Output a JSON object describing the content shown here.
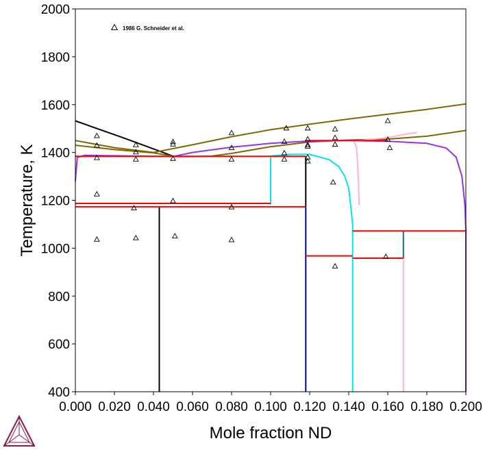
{
  "chart_data": {
    "type": "scatter",
    "title": "",
    "xlabel": "Mole fraction ND",
    "ylabel": "Temperature, K",
    "xlim": [
      0.0,
      0.2
    ],
    "ylim": [
      400,
      2000
    ],
    "grid": false,
    "legend_position": "top-left",
    "x_ticks": [
      "0.000",
      "0.020",
      "0.040",
      "0.060",
      "0.080",
      "0.100",
      "0.120",
      "0.140",
      "0.160",
      "0.180",
      "0.200"
    ],
    "x_tick_values": [
      0.0,
      0.02,
      0.04,
      0.06,
      0.08,
      0.1,
      0.12,
      0.14,
      0.16,
      0.18,
      0.2
    ],
    "y_ticks": [
      "400",
      "600",
      "800",
      "1000",
      "1200",
      "1400",
      "1600",
      "1800",
      "2000"
    ],
    "y_tick_values": [
      400,
      600,
      800,
      1000,
      1200,
      1400,
      1600,
      1800,
      2000
    ],
    "series": [
      {
        "name": "1986 G. Schneider et al.",
        "marker": "triangle",
        "color": "#000000",
        "points": [
          [
            0.011,
            1470
          ],
          [
            0.011,
            1430
          ],
          [
            0.011,
            1378
          ],
          [
            0.011,
            1226
          ],
          [
            0.011,
            1037
          ],
          [
            0.031,
            1432
          ],
          [
            0.031,
            1402
          ],
          [
            0.031,
            1372
          ],
          [
            0.03,
            1168
          ],
          [
            0.031,
            1043
          ],
          [
            0.05,
            1445
          ],
          [
            0.05,
            1435
          ],
          [
            0.05,
            1375
          ],
          [
            0.05,
            1198
          ],
          [
            0.051,
            1051
          ],
          [
            0.08,
            1482
          ],
          [
            0.08,
            1420
          ],
          [
            0.08,
            1372
          ],
          [
            0.08,
            1172
          ],
          [
            0.08,
            1035
          ],
          [
            0.108,
            1502
          ],
          [
            0.107,
            1446
          ],
          [
            0.107,
            1398
          ],
          [
            0.107,
            1372
          ],
          [
            0.119,
            1502
          ],
          [
            0.119,
            1456
          ],
          [
            0.119,
            1432
          ],
          [
            0.119,
            1426
          ],
          [
            0.119,
            1381
          ],
          [
            0.119,
            1364
          ],
          [
            0.133,
            1498
          ],
          [
            0.133,
            1462
          ],
          [
            0.133,
            1434
          ],
          [
            0.132,
            1276
          ],
          [
            0.133,
            925
          ],
          [
            0.16,
            1533
          ],
          [
            0.16,
            1455
          ],
          [
            0.161,
            1420
          ],
          [
            0.159,
            965
          ]
        ]
      }
    ],
    "curves": [
      {
        "color": "#000000",
        "points": [
          [
            0.0,
            1532
          ],
          [
            0.025,
            1460
          ],
          [
            0.05,
            1385
          ]
        ]
      },
      {
        "color": "#000000",
        "points": [
          [
            0.043,
            1175
          ],
          [
            0.043,
            400
          ]
        ]
      },
      {
        "color": "#000000",
        "points": [
          [
            0.118,
            1384
          ],
          [
            0.118,
            1175
          ]
        ]
      },
      {
        "color": "#806600",
        "points": [
          [
            0.0,
            1450
          ],
          [
            0.02,
            1420
          ],
          [
            0.04,
            1400
          ],
          [
            0.06,
            1432
          ],
          [
            0.08,
            1466
          ],
          [
            0.1,
            1495
          ],
          [
            0.12,
            1518
          ],
          [
            0.14,
            1540
          ],
          [
            0.16,
            1560
          ],
          [
            0.18,
            1580
          ],
          [
            0.2,
            1603
          ]
        ]
      },
      {
        "color": "#806600",
        "points": [
          [
            0.0,
            1430
          ],
          [
            0.02,
            1412
          ],
          [
            0.04,
            1398
          ],
          [
            0.05,
            1385
          ]
        ]
      },
      {
        "color": "#806600",
        "points": [
          [
            0.05,
            1383
          ],
          [
            0.06,
            1383
          ],
          [
            0.07,
            1385
          ],
          [
            0.08,
            1396
          ],
          [
            0.1,
            1424
          ],
          [
            0.12,
            1444
          ],
          [
            0.14,
            1452
          ],
          [
            0.16,
            1456
          ],
          [
            0.18,
            1468
          ],
          [
            0.2,
            1492
          ]
        ]
      },
      {
        "color": "#9B30E0",
        "points": [
          [
            0.0,
            1280
          ],
          [
            0.001,
            1380
          ],
          [
            0.005,
            1388
          ],
          [
            0.05,
            1383
          ],
          [
            0.06,
            1400
          ],
          [
            0.08,
            1422
          ],
          [
            0.1,
            1438
          ],
          [
            0.12,
            1448
          ],
          [
            0.14,
            1450
          ],
          [
            0.16,
            1447
          ],
          [
            0.18,
            1438
          ],
          [
            0.19,
            1418
          ],
          [
            0.195,
            1380
          ],
          [
            0.198,
            1300
          ],
          [
            0.1995,
            1180
          ],
          [
            0.2,
            1072
          ],
          [
            0.2,
            400
          ]
        ]
      },
      {
        "color": "#00E5EE",
        "points": [
          [
            0.1,
            1383
          ],
          [
            0.1,
            1182
          ]
        ]
      },
      {
        "color": "#00E5EE",
        "points": [
          [
            0.1,
            1385
          ],
          [
            0.11,
            1392
          ],
          [
            0.12,
            1392
          ],
          [
            0.13,
            1370
          ],
          [
            0.135,
            1340
          ],
          [
            0.138,
            1300
          ],
          [
            0.14,
            1250
          ],
          [
            0.141,
            1180
          ],
          [
            0.142,
            1100
          ],
          [
            0.142,
            400
          ]
        ]
      },
      {
        "color": "#FFB6C1",
        "points": [
          [
            0.142,
            1450
          ],
          [
            0.143,
            1442
          ],
          [
            0.144,
            1420
          ],
          [
            0.1445,
            1360
          ],
          [
            0.145,
            1280
          ],
          [
            0.1453,
            1180
          ]
        ]
      },
      {
        "color": "#FFB6C1",
        "points": [
          [
            0.145,
            1450
          ],
          [
            0.148,
            1452
          ],
          [
            0.155,
            1458
          ],
          [
            0.16,
            1462
          ],
          [
            0.165,
            1470
          ],
          [
            0.17,
            1478
          ],
          [
            0.175,
            1484
          ]
        ]
      },
      {
        "color": "#FFB6C1",
        "points": [
          [
            0.168,
            1072
          ],
          [
            0.168,
            400
          ]
        ]
      },
      {
        "color": "#0000AA",
        "points": [
          [
            0.118,
            1175
          ],
          [
            0.118,
            400
          ]
        ]
      },
      {
        "color": "#1E6FA0",
        "points": [
          [
            0.168,
            1072
          ],
          [
            0.168,
            958
          ]
        ]
      },
      {
        "color": "#FF0000",
        "points": [
          [
            0.0,
            1384
          ],
          [
            0.118,
            1384
          ]
        ]
      },
      {
        "color": "#FF0000",
        "points": [
          [
            0.0,
            1187
          ],
          [
            0.1,
            1187
          ]
        ]
      },
      {
        "color": "#FF0000",
        "points": [
          [
            0.0,
            1173
          ],
          [
            0.118,
            1173
          ]
        ]
      },
      {
        "color": "#FF0000",
        "points": [
          [
            0.118,
            968
          ],
          [
            0.142,
            968
          ]
        ]
      },
      {
        "color": "#FF0000",
        "points": [
          [
            0.142,
            958
          ],
          [
            0.168,
            958
          ]
        ]
      },
      {
        "color": "#FF0000",
        "points": [
          [
            0.142,
            1072
          ],
          [
            0.2,
            1072
          ]
        ]
      },
      {
        "color": "#FF0000",
        "points": [
          [
            0.118,
            1450
          ],
          [
            0.16,
            1450
          ]
        ]
      }
    ]
  },
  "logo": {
    "name": "thermo-calc-logo",
    "color": "#8B1A4A"
  }
}
